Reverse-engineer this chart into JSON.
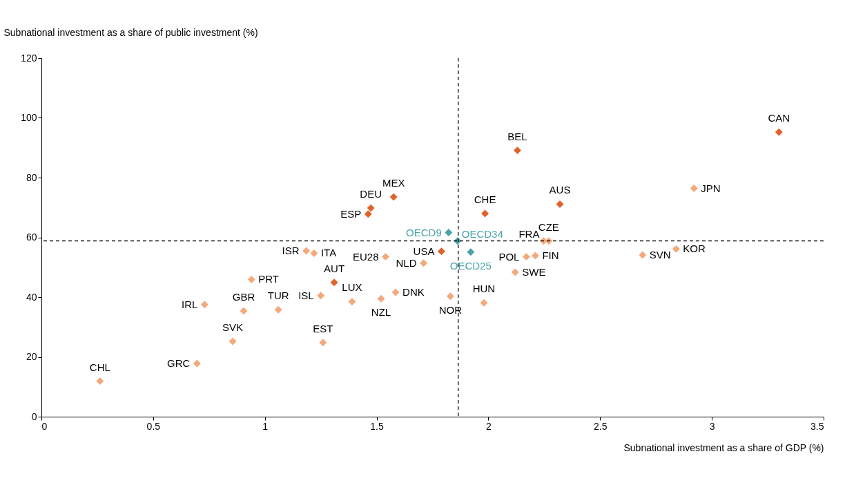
{
  "chart_data": {
    "type": "scatter",
    "xlabel": "Subnational investment as a share of GDP (%)",
    "ylabel": "Subnational investment as a share of public investment (%)",
    "xlim": [
      0,
      3.5
    ],
    "xticks": [
      0,
      0.5,
      1,
      1.5,
      2,
      2.5,
      3,
      3.5
    ],
    "ylim": [
      0,
      120
    ],
    "yticks": [
      0,
      20,
      40,
      60,
      80,
      100,
      120
    ],
    "grid": false,
    "marker": "diamond",
    "series": [
      {
        "color": "#e0622a",
        "x": [
          3.3,
          2.13,
          2.32,
          1.985,
          1.576,
          1.474,
          1.462,
          1.79,
          1.31
        ],
        "values": [
          95.2,
          89.1,
          71.1,
          68.0,
          73.5,
          69.8,
          67.8,
          55.3,
          44.9
        ]
      },
      {
        "color": "#f4a97a",
        "x": [
          2.92,
          2.247,
          2.27,
          2.84,
          2.69,
          2.17,
          2.21,
          2.12,
          1.54,
          1.71,
          1.185,
          1.22,
          0.94,
          1.25,
          1.39,
          1.585,
          1.52,
          1.83,
          1.98,
          0.73,
          0.905,
          1.06,
          0.856,
          1.26,
          0.696,
          0.262
        ],
        "values": [
          76.4,
          58.8,
          58.8,
          56.1,
          54.1,
          53.5,
          53.9,
          48.3,
          53.5,
          51.4,
          55.5,
          54.7,
          45.9,
          40.5,
          38.5,
          41.6,
          39.5,
          40.3,
          38.1,
          37.5,
          35.4,
          35.8,
          25.2,
          24.8,
          17.8,
          11.9
        ]
      },
      {
        "color": "#4aa3a8",
        "x": [
          1.822,
          1.862,
          1.921
        ],
        "values": [
          61.6,
          58.8,
          55.1
        ]
      }
    ],
    "ref_lines": [
      {
        "axis": "x",
        "value": 1.865,
        "line_style": "dashed",
        "color": "#000000"
      },
      {
        "axis": "y",
        "value": 58.8,
        "line_style": "dashed",
        "color": "#000000"
      }
    ],
    "annotations": [
      {
        "text": "CAN",
        "x": 3.3,
        "y": 95.2
      },
      {
        "text": "BEL",
        "x": 2.13,
        "y": 89.1
      },
      {
        "text": "JPN",
        "x": 2.92,
        "y": 76.4
      },
      {
        "text": "AUS",
        "x": 2.32,
        "y": 71.1
      },
      {
        "text": "CHE",
        "x": 1.985,
        "y": 68.0
      },
      {
        "text": "MEX",
        "x": 1.576,
        "y": 73.5
      },
      {
        "text": "DEU",
        "x": 1.474,
        "y": 69.8
      },
      {
        "text": "ESP",
        "x": 1.462,
        "y": 67.8
      },
      {
        "text": "OECD9",
        "x": 1.822,
        "y": 61.6
      },
      {
        "text": "OECD34",
        "x": 1.862,
        "y": 58.8
      },
      {
        "text": "OECD25",
        "x": 1.921,
        "y": 55.1
      },
      {
        "text": "FRA",
        "x": 2.247,
        "y": 58.8
      },
      {
        "text": "CZE",
        "x": 2.27,
        "y": 58.8
      },
      {
        "text": "KOR",
        "x": 2.84,
        "y": 56.1
      },
      {
        "text": "SVN",
        "x": 2.69,
        "y": 54.1
      },
      {
        "text": "POL",
        "x": 2.17,
        "y": 53.5
      },
      {
        "text": "FIN",
        "x": 2.21,
        "y": 53.9
      },
      {
        "text": "SWE",
        "x": 2.12,
        "y": 48.3
      },
      {
        "text": "USA",
        "x": 1.79,
        "y": 55.3
      },
      {
        "text": "EU28",
        "x": 1.54,
        "y": 53.5
      },
      {
        "text": "NLD",
        "x": 1.71,
        "y": 51.4
      },
      {
        "text": "ISR",
        "x": 1.185,
        "y": 55.5
      },
      {
        "text": "ITA",
        "x": 1.22,
        "y": 54.7
      },
      {
        "text": "PRT",
        "x": 0.94,
        "y": 45.9
      },
      {
        "text": "AUT",
        "x": 1.31,
        "y": 44.9
      },
      {
        "text": "ISL",
        "x": 1.25,
        "y": 40.5
      },
      {
        "text": "LUX",
        "x": 1.39,
        "y": 38.5
      },
      {
        "text": "DNK",
        "x": 1.585,
        "y": 41.6
      },
      {
        "text": "NZL",
        "x": 1.52,
        "y": 39.5
      },
      {
        "text": "NOR",
        "x": 1.83,
        "y": 40.3
      },
      {
        "text": "HUN",
        "x": 1.98,
        "y": 38.1
      },
      {
        "text": "IRL",
        "x": 0.73,
        "y": 37.5
      },
      {
        "text": "GBR",
        "x": 0.905,
        "y": 35.4
      },
      {
        "text": "TUR",
        "x": 1.06,
        "y": 35.8
      },
      {
        "text": "SVK",
        "x": 0.856,
        "y": 25.2
      },
      {
        "text": "EST",
        "x": 1.26,
        "y": 24.8
      },
      {
        "text": "GRC",
        "x": 0.696,
        "y": 17.8
      },
      {
        "text": "CHL",
        "x": 0.262,
        "y": 11.9
      }
    ]
  }
}
